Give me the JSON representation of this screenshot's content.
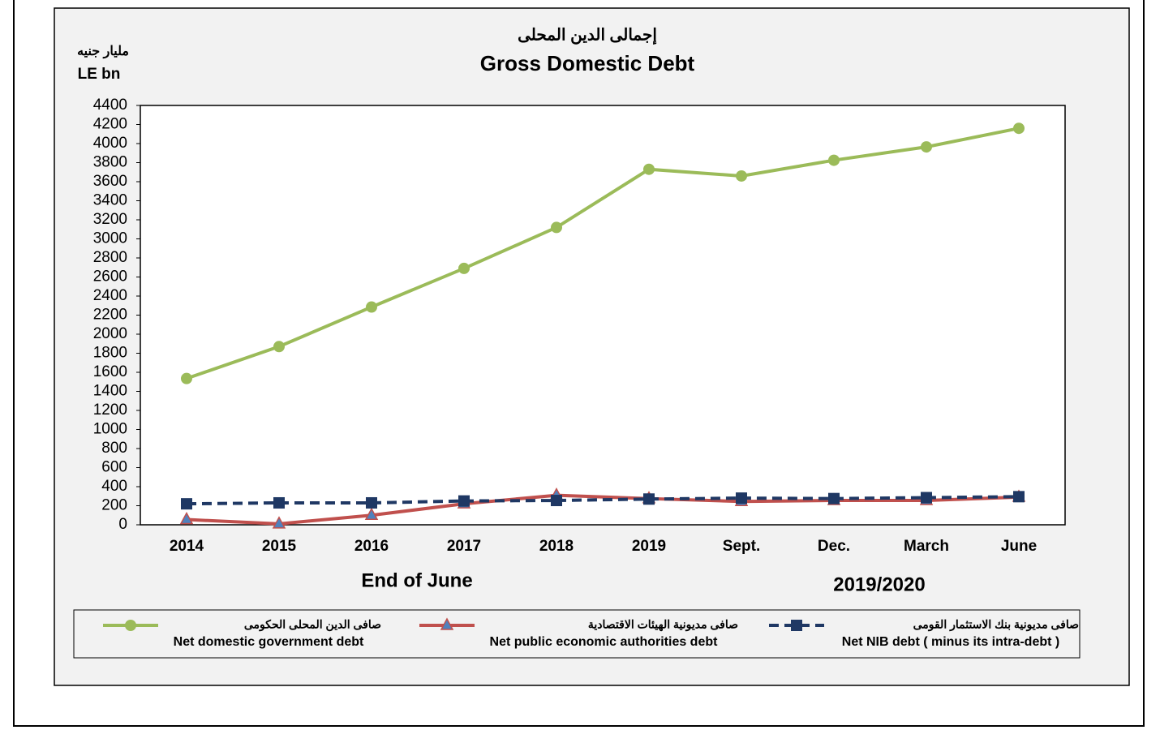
{
  "chart_data": {
    "type": "line",
    "title": "إجمالى الدين المحلى",
    "subtitle": "Gross Domestic Debt",
    "ylabel_ar": "مليار جنيه",
    "ylabel": "LE bn",
    "annotations": [
      "End of June",
      "2019/2020"
    ],
    "categories": [
      "2014",
      "2015",
      "2016",
      "2017",
      "2018",
      "2019",
      "Sept.",
      "Dec.",
      "March",
      "June"
    ],
    "series": [
      {
        "name": "Net domestic government debt",
        "name_ar": "صافى الدين المحلى الحكومى",
        "color": "#9bbb59",
        "marker": "circle",
        "dashed": false,
        "values": [
          1535,
          1870,
          2285,
          2690,
          3120,
          3730,
          3660,
          3825,
          3965,
          4160
        ]
      },
      {
        "name": "Net public economic authorities debt",
        "name_ar": "صافى مديونية الهيئات الاقتصادية",
        "color": "#c0504d",
        "marker": "triangle",
        "dashed": false,
        "values": [
          55,
          10,
          100,
          220,
          310,
          275,
          245,
          255,
          255,
          290
        ]
      },
      {
        "name": "Net NIB debt ( minus its intra-debt )",
        "name_ar": "صافى مديونية بنك الاستثمار القومى",
        "color": "#1f3864",
        "marker": "square",
        "dashed": true,
        "values": [
          220,
          230,
          230,
          250,
          255,
          270,
          280,
          275,
          285,
          295
        ]
      }
    ],
    "ylim": [
      0,
      4400
    ],
    "yticks": [
      0,
      200,
      400,
      600,
      800,
      1000,
      1200,
      1400,
      1600,
      1800,
      2000,
      2200,
      2400,
      2600,
      2800,
      3000,
      3200,
      3400,
      3600,
      3800,
      4000,
      4200,
      4400
    ],
    "grid": false
  }
}
